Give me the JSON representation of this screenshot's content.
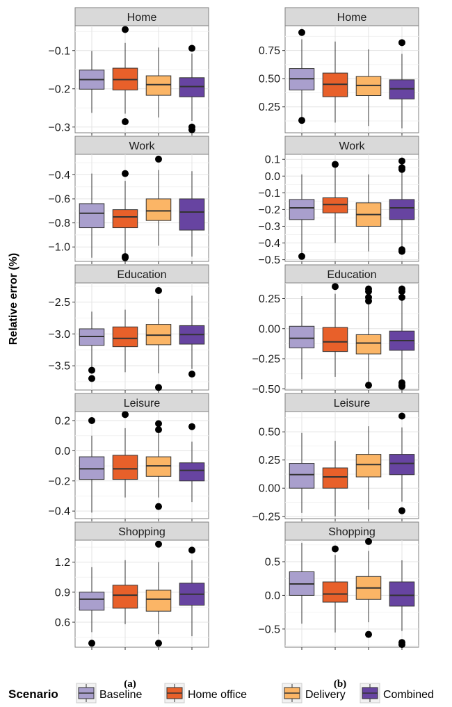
{
  "ylabel": "Relative error (%)",
  "legend": {
    "title": "Scenario",
    "items": [
      {
        "label": "Baseline",
        "color": "#a99fcd"
      },
      {
        "label": "Home office",
        "color": "#e8602a"
      },
      {
        "label": "Delivery",
        "color": "#fbb566"
      },
      {
        "label": "Combined",
        "color": "#6744a1"
      }
    ]
  },
  "columns": [
    {
      "label": "(a)"
    },
    {
      "label": "(b)"
    }
  ],
  "chart_data": [
    {
      "type": "box",
      "column": "(a)",
      "facet": "Home",
      "ylim": [
        -0.315,
        -0.035
      ],
      "yticks": [
        -0.3,
        -0.2,
        -0.1
      ],
      "ytick_labels": [
        "−0.3",
        "−0.2",
        "−0.1"
      ],
      "categories": [
        "Baseline",
        "Home office",
        "Delivery",
        "Combined"
      ],
      "boxes": [
        {
          "min": -0.263,
          "q1": -0.201,
          "median": -0.176,
          "q3": -0.151,
          "max": -0.101,
          "outliers": []
        },
        {
          "min": -0.265,
          "q1": -0.203,
          "median": -0.176,
          "q3": -0.146,
          "max": -0.08,
          "outliers": [
            -0.045,
            -0.286
          ]
        },
        {
          "min": -0.275,
          "q1": -0.217,
          "median": -0.189,
          "q3": -0.166,
          "max": -0.092,
          "outliers": []
        },
        {
          "min": -0.284,
          "q1": -0.221,
          "median": -0.194,
          "q3": -0.171,
          "max": -0.108,
          "outliers": [
            -0.094,
            -0.3,
            -0.307
          ]
        }
      ]
    },
    {
      "type": "box",
      "column": "(b)",
      "facet": "Home",
      "ylim": [
        0.02,
        0.97
      ],
      "yticks": [
        0.25,
        0.5,
        0.75
      ],
      "ytick_labels": [
        "0.25",
        "0.50",
        "0.75"
      ],
      "categories": [
        "Baseline",
        "Home office",
        "Delivery",
        "Combined"
      ],
      "boxes": [
        {
          "min": 0.13,
          "q1": 0.4,
          "median": 0.5,
          "q3": 0.59,
          "max": 0.85,
          "outliers": [
            0.91,
            0.13
          ]
        },
        {
          "min": 0.11,
          "q1": 0.34,
          "median": 0.45,
          "q3": 0.55,
          "max": 0.83,
          "outliers": []
        },
        {
          "min": 0.08,
          "q1": 0.35,
          "median": 0.44,
          "q3": 0.52,
          "max": 0.76,
          "outliers": []
        },
        {
          "min": 0.06,
          "q1": 0.32,
          "median": 0.41,
          "q3": 0.49,
          "max": 0.72,
          "outliers": [
            0.82
          ]
        }
      ]
    },
    {
      "type": "box",
      "column": "(a)",
      "facet": "Work",
      "ylim": [
        -1.12,
        -0.23
      ],
      "yticks": [
        -1.0,
        -0.8,
        -0.6,
        -0.4
      ],
      "ytick_labels": [
        "−1.0",
        "−0.8",
        "−0.6",
        "−0.4"
      ],
      "categories": [
        "Baseline",
        "Home office",
        "Delivery",
        "Combined"
      ],
      "boxes": [
        {
          "min": -1.09,
          "q1": -0.84,
          "median": -0.72,
          "q3": -0.64,
          "max": -0.39,
          "outliers": []
        },
        {
          "min": -1.06,
          "q1": -0.84,
          "median": -0.75,
          "q3": -0.69,
          "max": -0.45,
          "outliers": [
            -0.39,
            -1.08,
            -1.09
          ]
        },
        {
          "min": -0.99,
          "q1": -0.78,
          "median": -0.7,
          "q3": -0.6,
          "max": -0.36,
          "outliers": [
            -0.27
          ]
        },
        {
          "min": -1.08,
          "q1": -0.86,
          "median": -0.71,
          "q3": -0.6,
          "max": -0.37,
          "outliers": []
        }
      ]
    },
    {
      "type": "box",
      "column": "(b)",
      "facet": "Work",
      "ylim": [
        -0.51,
        0.13
      ],
      "yticks": [
        -0.5,
        -0.4,
        -0.3,
        -0.2,
        -0.1,
        0.0,
        0.1
      ],
      "ytick_labels": [
        "−0.5",
        "−0.4",
        "−0.3",
        "−0.2",
        "−0.1",
        "0.0",
        "0.1"
      ],
      "categories": [
        "Baseline",
        "Home office",
        "Delivery",
        "Combined"
      ],
      "boxes": [
        {
          "min": -0.47,
          "q1": -0.26,
          "median": -0.19,
          "q3": -0.14,
          "max": 0.01,
          "outliers": [
            -0.48
          ]
        },
        {
          "min": -0.4,
          "q1": -0.22,
          "median": -0.17,
          "q3": -0.13,
          "max": 0.05,
          "outliers": [
            0.07
          ]
        },
        {
          "min": -0.45,
          "q1": -0.3,
          "median": -0.23,
          "q3": -0.16,
          "max": 0.01,
          "outliers": []
        },
        {
          "min": -0.43,
          "q1": -0.26,
          "median": -0.19,
          "q3": -0.14,
          "max": 0.03,
          "outliers": [
            0.09,
            0.05,
            0.04,
            -0.44,
            -0.45
          ]
        }
      ]
    },
    {
      "type": "box",
      "column": "(a)",
      "facet": "Education",
      "ylim": [
        -3.88,
        -2.2
      ],
      "yticks": [
        -3.5,
        -3.0,
        -2.5
      ],
      "ytick_labels": [
        "−3.5",
        "−3.0",
        "−2.5"
      ],
      "categories": [
        "Baseline",
        "Home office",
        "Delivery",
        "Combined"
      ],
      "boxes": [
        {
          "min": -3.52,
          "q1": -3.18,
          "median": -3.04,
          "q3": -2.92,
          "max": -2.65,
          "outliers": [
            -3.57,
            -3.7
          ]
        },
        {
          "min": -3.6,
          "q1": -3.2,
          "median": -3.07,
          "q3": -2.89,
          "max": -2.62,
          "outliers": []
        },
        {
          "min": -3.62,
          "q1": -3.17,
          "median": -3.02,
          "q3": -2.85,
          "max": -2.45,
          "outliers": [
            -2.32,
            -3.84
          ]
        },
        {
          "min": -3.55,
          "q1": -3.16,
          "median": -3.01,
          "q3": -2.87,
          "max": -2.4,
          "outliers": [
            -3.63
          ]
        }
      ]
    },
    {
      "type": "box",
      "column": "(b)",
      "facet": "Education",
      "ylim": [
        -0.51,
        0.38
      ],
      "yticks": [
        -0.5,
        -0.25,
        0.0,
        0.25
      ],
      "ytick_labels": [
        "−0.50",
        "−0.25",
        "0.00",
        "0.25"
      ],
      "categories": [
        "Baseline",
        "Home office",
        "Delivery",
        "Combined"
      ],
      "boxes": [
        {
          "min": -0.42,
          "q1": -0.16,
          "median": -0.08,
          "q3": 0.02,
          "max": 0.27,
          "outliers": []
        },
        {
          "min": -0.4,
          "q1": -0.19,
          "median": -0.11,
          "q3": 0.01,
          "max": 0.29,
          "outliers": [
            0.35
          ]
        },
        {
          "min": -0.45,
          "q1": -0.21,
          "median": -0.12,
          "q3": -0.05,
          "max": 0.21,
          "outliers": [
            0.33,
            0.31,
            0.26,
            0.23,
            -0.47
          ]
        },
        {
          "min": -0.44,
          "q1": -0.18,
          "median": -0.1,
          "q3": -0.02,
          "max": 0.24,
          "outliers": [
            0.33,
            0.31,
            0.26,
            -0.45,
            -0.47,
            -0.48
          ]
        }
      ]
    },
    {
      "type": "box",
      "column": "(a)",
      "facet": "Leisure",
      "ylim": [
        -0.45,
        0.26
      ],
      "yticks": [
        -0.4,
        -0.2,
        0.0,
        0.2
      ],
      "ytick_labels": [
        "−0.4",
        "−0.2",
        "0.0",
        "0.2"
      ],
      "categories": [
        "Baseline",
        "Home office",
        "Delivery",
        "Combined"
      ],
      "boxes": [
        {
          "min": -0.41,
          "q1": -0.19,
          "median": -0.12,
          "q3": -0.04,
          "max": 0.1,
          "outliers": [
            0.2
          ]
        },
        {
          "min": -0.31,
          "q1": -0.19,
          "median": -0.12,
          "q3": -0.03,
          "max": 0.15,
          "outliers": [
            0.24
          ]
        },
        {
          "min": -0.31,
          "q1": -0.17,
          "median": -0.1,
          "q3": -0.04,
          "max": 0.12,
          "outliers": [
            0.18,
            0.14,
            -0.37
          ]
        },
        {
          "min": -0.34,
          "q1": -0.2,
          "median": -0.13,
          "q3": -0.08,
          "max": 0.06,
          "outliers": [
            0.16
          ]
        }
      ]
    },
    {
      "type": "box",
      "column": "(b)",
      "facet": "Leisure",
      "ylim": [
        -0.27,
        0.68
      ],
      "yticks": [
        -0.25,
        0.0,
        0.25,
        0.5
      ],
      "ytick_labels": [
        "−0.25",
        "0.00",
        "0.25",
        "0.50"
      ],
      "categories": [
        "Baseline",
        "Home office",
        "Delivery",
        "Combined"
      ],
      "boxes": [
        {
          "min": -0.22,
          "q1": 0.0,
          "median": 0.12,
          "q3": 0.22,
          "max": 0.49,
          "outliers": []
        },
        {
          "min": -0.25,
          "q1": 0.0,
          "median": 0.1,
          "q3": 0.18,
          "max": 0.42,
          "outliers": []
        },
        {
          "min": -0.19,
          "q1": 0.1,
          "median": 0.21,
          "q3": 0.3,
          "max": 0.55,
          "outliers": []
        },
        {
          "min": -0.12,
          "q1": 0.12,
          "median": 0.22,
          "q3": 0.3,
          "max": 0.54,
          "outliers": [
            0.64,
            -0.2
          ]
        }
      ]
    },
    {
      "type": "box",
      "column": "(a)",
      "facet": "Shopping",
      "ylim": [
        0.35,
        1.42
      ],
      "yticks": [
        0.6,
        0.9,
        1.2
      ],
      "ytick_labels": [
        "0.6",
        "0.9",
        "1.2"
      ],
      "categories": [
        "Baseline",
        "Home office",
        "Delivery",
        "Combined"
      ],
      "boxes": [
        {
          "min": 0.5,
          "q1": 0.72,
          "median": 0.83,
          "q3": 0.9,
          "max": 1.15,
          "outliers": [
            0.39
          ]
        },
        {
          "min": 0.58,
          "q1": 0.74,
          "median": 0.87,
          "q3": 0.97,
          "max": 1.22,
          "outliers": []
        },
        {
          "min": 0.48,
          "q1": 0.71,
          "median": 0.83,
          "q3": 0.92,
          "max": 1.2,
          "outliers": [
            1.38,
            0.39
          ]
        },
        {
          "min": 0.46,
          "q1": 0.77,
          "median": 0.88,
          "q3": 0.99,
          "max": 1.22,
          "outliers": [
            1.32
          ]
        }
      ]
    },
    {
      "type": "box",
      "column": "(b)",
      "facet": "Shopping",
      "ylim": [
        -0.77,
        0.82
      ],
      "yticks": [
        -0.5,
        0.0,
        0.5
      ],
      "ytick_labels": [
        "−0.5",
        "0.0",
        "0.5"
      ],
      "categories": [
        "Baseline",
        "Home office",
        "Delivery",
        "Combined"
      ],
      "boxes": [
        {
          "min": -0.42,
          "q1": 0.0,
          "median": 0.17,
          "q3": 0.35,
          "max": 0.78,
          "outliers": []
        },
        {
          "min": -0.55,
          "q1": -0.1,
          "median": 0.02,
          "q3": 0.2,
          "max": 0.6,
          "outliers": [
            0.69
          ]
        },
        {
          "min": -0.4,
          "q1": -0.06,
          "median": 0.11,
          "q3": 0.28,
          "max": 0.66,
          "outliers": [
            0.8,
            -0.58
          ]
        },
        {
          "min": -0.53,
          "q1": -0.16,
          "median": 0.0,
          "q3": 0.2,
          "max": 0.52,
          "outliers": [
            -0.7,
            -0.73
          ]
        }
      ]
    }
  ]
}
